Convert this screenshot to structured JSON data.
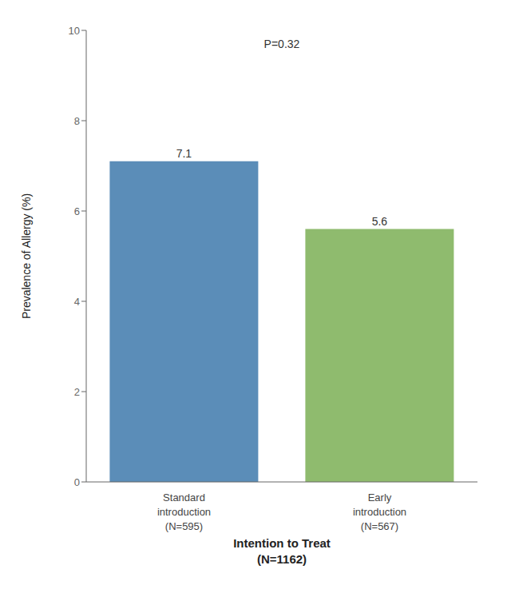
{
  "chart_data": {
    "type": "bar",
    "categories": [
      "Standard\nintroduction\n(N=595)",
      "Early\nintroduction\n(N=567)"
    ],
    "values": [
      7.1,
      5.6
    ],
    "colors": [
      "#5b8db8",
      "#8fbb6e"
    ],
    "ylabel": "Prevalence of Allergy (%)",
    "xlabel": "Intention to Treat\n(N=1162)",
    "annotation": "P=0.32",
    "ylim": [
      0,
      10
    ],
    "yticks": [
      0,
      2,
      4,
      6,
      8,
      10
    ],
    "data_labels": true,
    "grid": false
  }
}
